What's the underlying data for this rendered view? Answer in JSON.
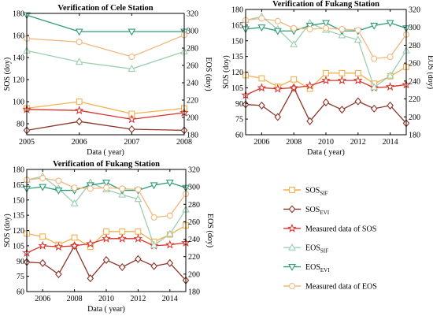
{
  "legend": {
    "items": [
      {
        "key": "sos_sif",
        "base": "SOS",
        "sub": "SIF",
        "color": "#f5b04c",
        "marker": "square",
        "dash": false
      },
      {
        "key": "sos_evi",
        "base": "SOS",
        "sub": "EVI",
        "color": "#8b3528",
        "marker": "diamond",
        "dash": false
      },
      {
        "key": "sos_meas",
        "base": "Measured data of SOS",
        "sub": "",
        "color": "#d8322a",
        "marker": "star",
        "dash": false
      },
      {
        "key": "eos_sif",
        "base": "EOS",
        "sub": "SIF",
        "color": "#9ccfb0",
        "marker": "triangle-up",
        "dash": false
      },
      {
        "key": "eos_evi",
        "base": "EOS",
        "sub": "EVI",
        "color": "#2e9b78",
        "marker": "triangle-down",
        "dash": false
      },
      {
        "key": "eos_meas",
        "base": "Measured data of EOS",
        "sub": "",
        "color": "#f2b77f",
        "marker": "circle",
        "dash": false
      }
    ]
  },
  "chart_data": [
    {
      "type": "line",
      "title": "Verification of Cele Station",
      "xlabel": "Data ( year)",
      "ylabel": "SOS (doy)",
      "y2label": "EOS (doy)",
      "xlim": [
        2005,
        2008
      ],
      "xticks": [
        2005,
        2006,
        2007,
        2008
      ],
      "ylim": [
        70,
        180
      ],
      "yticks": [
        80,
        100,
        120,
        140,
        160,
        180
      ],
      "y2lim": [
        180,
        320
      ],
      "y2ticks": [
        180,
        200,
        220,
        240,
        260,
        280,
        300,
        320
      ],
      "x": [
        2005,
        2006,
        2007,
        2008
      ],
      "series": [
        {
          "key": "sos_sif",
          "axis": "left",
          "values": [
            94,
            100,
            89,
            94
          ]
        },
        {
          "key": "sos_evi",
          "axis": "left",
          "values": [
            74,
            82,
            75,
            74
          ]
        },
        {
          "key": "sos_meas",
          "axis": "left",
          "values": [
            93,
            92,
            84,
            90
          ]
        },
        {
          "key": "eos_sif",
          "axis": "right",
          "values": [
            277,
            264,
            256,
            276
          ]
        },
        {
          "key": "eos_evi",
          "axis": "right",
          "values": [
            318,
            299,
            299,
            299
          ]
        },
        {
          "key": "eos_meas",
          "axis": "right",
          "values": [
            291,
            287,
            270,
            295
          ]
        }
      ]
    },
    {
      "type": "line",
      "title": "Verification of Fukang Station",
      "xlabel": "Data ( year)",
      "ylabel": "SOS (doy)",
      "y2label": "EOS (doy)",
      "xlim": [
        2005,
        2015
      ],
      "xticks": [
        2006,
        2008,
        2010,
        2012,
        2014
      ],
      "ylim": [
        60,
        180
      ],
      "yticks": [
        60,
        75,
        90,
        105,
        120,
        135,
        150,
        165,
        180
      ],
      "y2lim": [
        180,
        320
      ],
      "y2ticks": [
        180,
        200,
        220,
        240,
        260,
        280,
        300,
        320
      ],
      "x": [
        2005,
        2006,
        2007,
        2008,
        2009,
        2010,
        2011,
        2012,
        2013,
        2014,
        2015
      ],
      "series": [
        {
          "key": "sos_sif",
          "axis": "left",
          "values": [
            117,
            114,
            106,
            113,
            104,
            119,
            119,
            119,
            109,
            116,
            125
          ]
        },
        {
          "key": "sos_evi",
          "axis": "left",
          "values": [
            89,
            88,
            77,
            105,
            73,
            91,
            84,
            92,
            85,
            88,
            71
          ]
        },
        {
          "key": "sos_meas",
          "axis": "left",
          "values": [
            98,
            105,
            104,
            105,
            107,
            112,
            112,
            112,
            105,
            106,
            108
          ]
        },
        {
          "key": "eos_sif",
          "axis": "right",
          "values": [
            308,
            312,
            298,
            281,
            305,
            297,
            291,
            286,
            233,
            246,
            274
          ]
        },
        {
          "key": "eos_evi",
          "axis": "right",
          "values": [
            298,
            300,
            296,
            296,
            302,
            305,
            296,
            296,
            302,
            305,
            299
          ]
        },
        {
          "key": "eos_meas",
          "axis": "right",
          "values": [
            308,
            310,
            307,
            299,
            298,
            299,
            298,
            297,
            265,
            267,
            292
          ]
        }
      ]
    },
    {
      "type": "line",
      "title": "Verification of Fukang Station",
      "xlabel": "Data ( year)",
      "ylabel": "SOS (doy)",
      "y2label": "EOS (doy)",
      "xlim": [
        2005,
        2015
      ],
      "xticks": [
        2006,
        2008,
        2010,
        2012,
        2014
      ],
      "ylim": [
        60,
        180
      ],
      "yticks": [
        60,
        75,
        90,
        105,
        120,
        135,
        150,
        165,
        180
      ],
      "y2lim": [
        180,
        320
      ],
      "y2ticks": [
        180,
        200,
        220,
        240,
        260,
        280,
        300,
        320
      ],
      "x": [
        2005,
        2006,
        2007,
        2008,
        2009,
        2010,
        2011,
        2012,
        2013,
        2014,
        2015
      ],
      "series": [
        {
          "key": "sos_sif",
          "axis": "left",
          "values": [
            117,
            114,
            106,
            113,
            104,
            119,
            119,
            119,
            109,
            116,
            125
          ]
        },
        {
          "key": "sos_evi",
          "axis": "left",
          "values": [
            89,
            88,
            77,
            105,
            73,
            91,
            84,
            92,
            85,
            88,
            71
          ]
        },
        {
          "key": "sos_meas",
          "axis": "left",
          "values": [
            98,
            105,
            104,
            105,
            107,
            112,
            112,
            112,
            105,
            106,
            108
          ]
        },
        {
          "key": "eos_sif",
          "axis": "right",
          "values": [
            308,
            312,
            298,
            281,
            305,
            297,
            291,
            286,
            233,
            246,
            274
          ]
        },
        {
          "key": "eos_evi",
          "axis": "right",
          "values": [
            298,
            300,
            296,
            296,
            302,
            305,
            296,
            296,
            302,
            305,
            299
          ]
        },
        {
          "key": "eos_meas",
          "axis": "right",
          "values": [
            308,
            310,
            307,
            299,
            298,
            299,
            298,
            297,
            265,
            267,
            292
          ]
        }
      ]
    }
  ]
}
